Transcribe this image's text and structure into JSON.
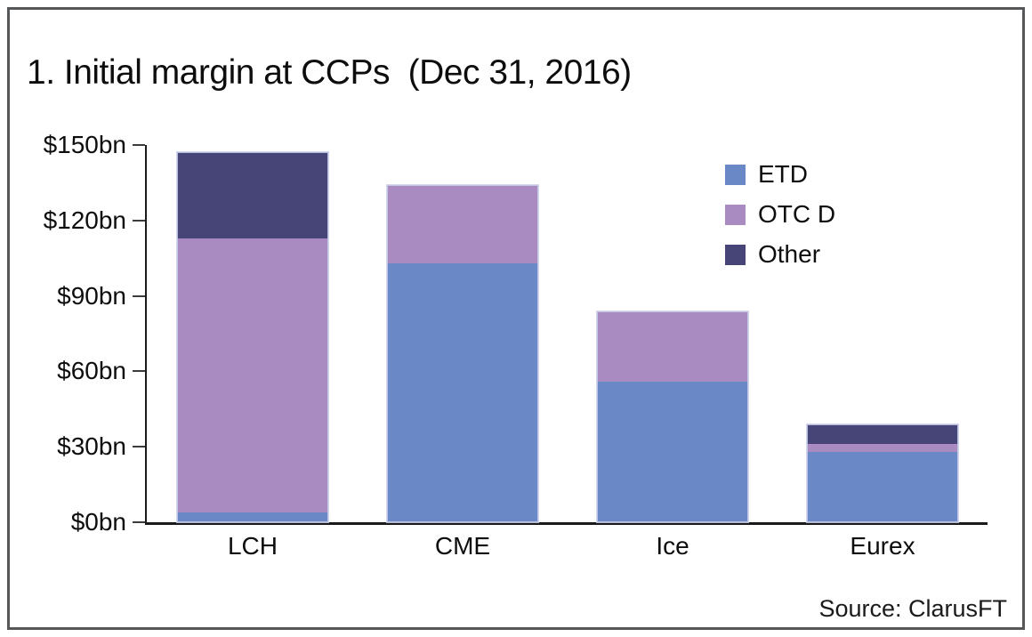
{
  "title": "1. Initial margin at CCPs  (Dec 31, 2016)",
  "source_label": "Source: ClarusFT",
  "colors": {
    "etd_blue": "#6a88c6",
    "otc_purple": "#a98ac1",
    "other_navy": "#474577",
    "axis": "#1a1a1a",
    "frame_border": "#565759"
  },
  "chart_data": {
    "type": "bar",
    "stacked": true,
    "title": "1. Initial margin at CCPs  (Dec 31, 2016)",
    "categories": [
      "LCH",
      "CME",
      "Ice",
      "Eurex"
    ],
    "series": [
      {
        "name": "ETD",
        "color": "#6a88c6",
        "values": [
          4,
          103,
          56,
          28
        ]
      },
      {
        "name": "OTC D",
        "color": "#a98ac1",
        "values": [
          109,
          31,
          28,
          3
        ]
      },
      {
        "name": "Other",
        "color": "#474577",
        "values": [
          34,
          0,
          0,
          8
        ]
      }
    ],
    "totals": [
      147,
      134,
      84,
      39
    ],
    "unit": "$bn",
    "ylim": [
      0,
      150
    ],
    "yticks": [
      0,
      30,
      60,
      90,
      120,
      150
    ],
    "ytick_labels": [
      "$0bn",
      "$30bn",
      "$60bn",
      "$90bn",
      "$120bn",
      "$150bn"
    ],
    "xlabel": "",
    "ylabel": "",
    "grid": false,
    "legend_position": "top-right",
    "legend_entries": [
      "ETD",
      "OTC D",
      "Other"
    ]
  }
}
